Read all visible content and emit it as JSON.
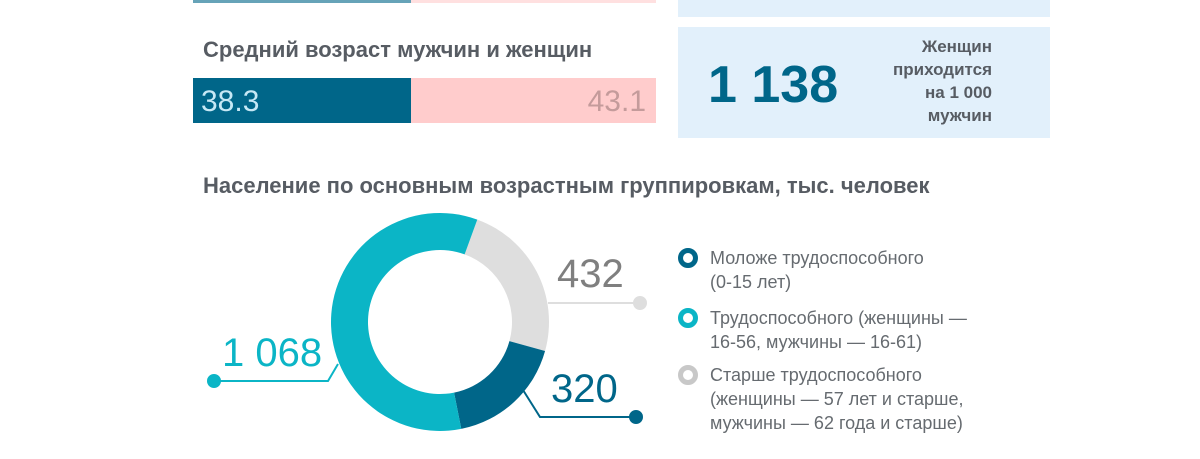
{
  "colors": {
    "men": "#006689",
    "women": "#ffcccc",
    "working": "#0bb5c6",
    "older": "#dedede",
    "panel": "#e2f0fb",
    "text": "#575c63"
  },
  "age": {
    "title": "Средний возраст мужчин и женщин",
    "men": "38.3",
    "women": "43.1"
  },
  "ratio": {
    "value": "1 138",
    "caption": [
      "Женщин",
      "приходится",
      "на 1 000",
      "мужчин"
    ]
  },
  "chart_data": {
    "type": "pie",
    "title": "Население по основным возрастным группировкам, тыс. человек",
    "categories": [
      "Моложе трудоспособного (0-15 лет)",
      "Трудоспособного (женщины — 16-56, мужчины — 16-61)",
      "Старше трудоспособного (женщины — 57 лет и старше, мужчины — 62 года и старше)"
    ],
    "values": [
      320,
      1068,
      432
    ],
    "labels": [
      "320",
      "1 068",
      "432"
    ],
    "colors": [
      "#006689",
      "#0bb5c6",
      "#dedede"
    ],
    "donut": true,
    "legend_placement": "right"
  },
  "legend": [
    {
      "line1": "Моложе трудоспособного",
      "line2": "(0-15 лет)"
    },
    {
      "line1": "Трудоспособного (женщины —",
      "line2": "16-56, мужчины — 16-61)"
    },
    {
      "line1": "Старше трудоспособного",
      "line2": "(женщины — 57 лет и старше,",
      "line3": "мужчины — 62 года и старше)"
    }
  ]
}
